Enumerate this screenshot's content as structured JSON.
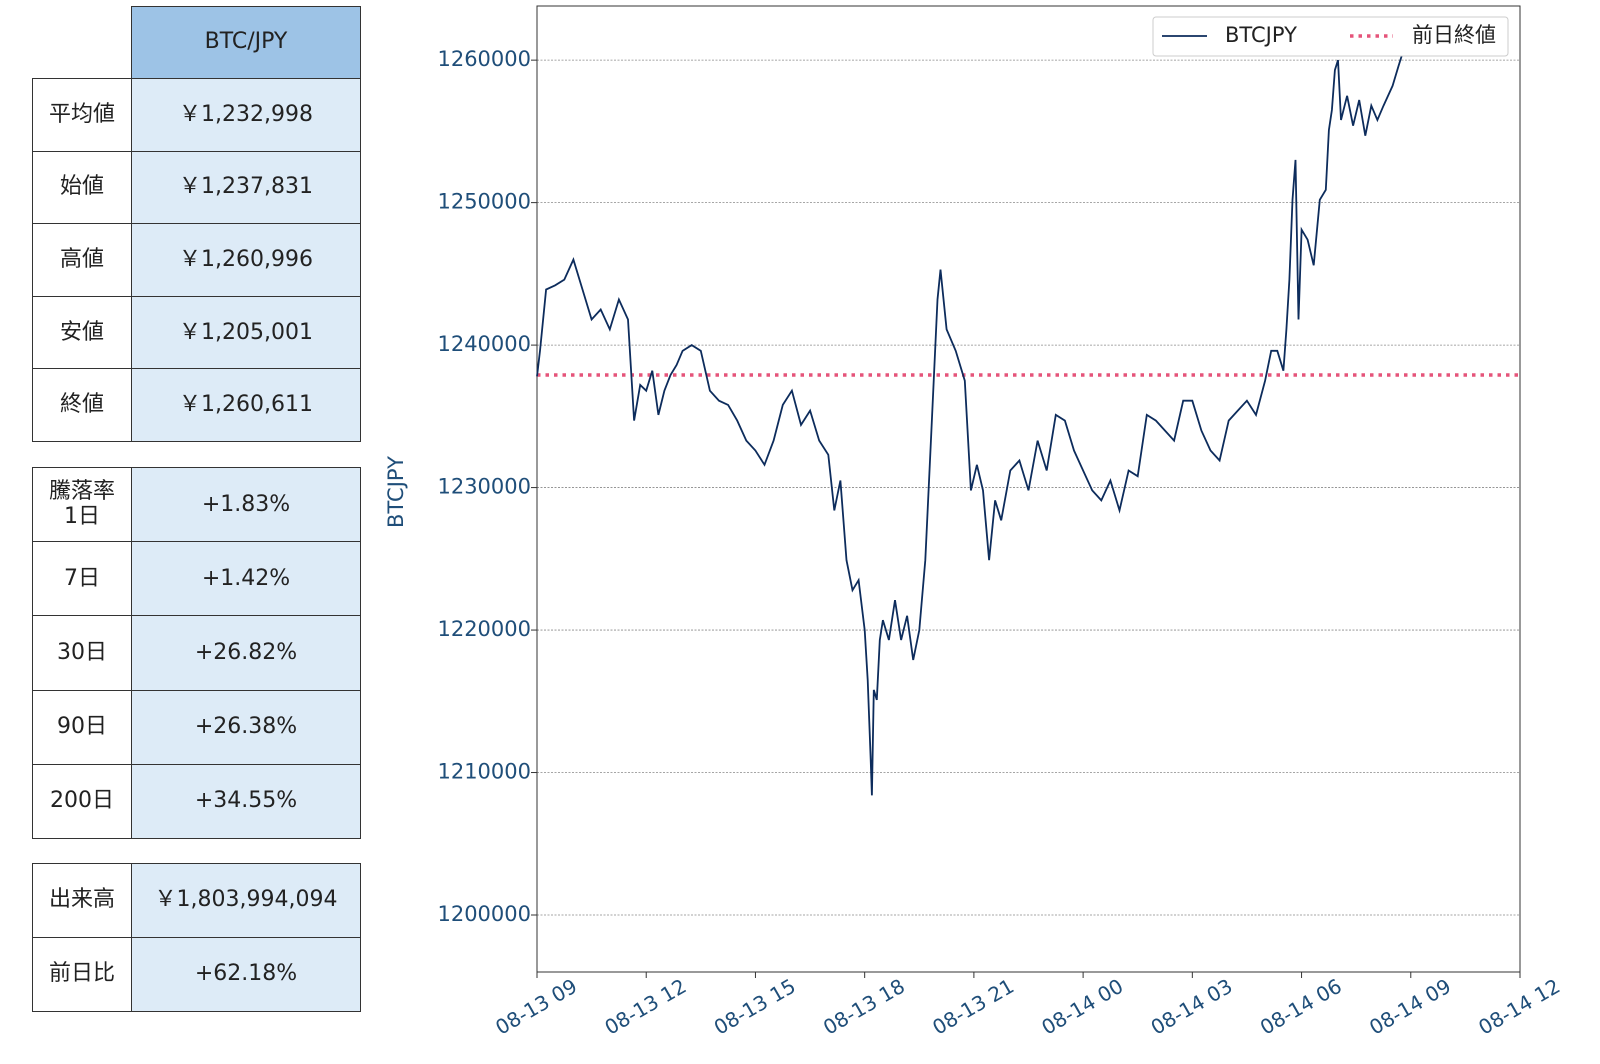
{
  "tables": [
    {
      "header": "BTC/JPY",
      "rows": [
        [
          "平均値",
          "￥1,232,998"
        ],
        [
          "始値",
          "￥1,237,831"
        ],
        [
          "高値",
          "￥1,260,996"
        ],
        [
          "安値",
          "￥1,205,001"
        ],
        [
          "終値",
          "￥1,260,611"
        ]
      ]
    },
    {
      "rows": [
        [
          "騰落率\n1日",
          "+1.83%"
        ],
        [
          "7日",
          "+1.42%"
        ],
        [
          "30日",
          "+26.82%"
        ],
        [
          "90日",
          "+26.38%"
        ],
        [
          "200日",
          "+34.55%"
        ]
      ]
    },
    {
      "rows": [
        [
          "出来高",
          "￥1,803,994,094"
        ],
        [
          "前日比",
          "+62.18%"
        ]
      ]
    }
  ],
  "chart_data": {
    "type": "line",
    "y_label": "BTCJPY",
    "x": [
      "08-13 09:00",
      "08-13 09:05",
      "08-13 09:15",
      "08-13 09:30",
      "08-13 09:45",
      "08-13 10:00",
      "08-13 10:15",
      "08-13 10:30",
      "08-13 10:45",
      "08-13 11:00",
      "08-13 11:15",
      "08-13 11:30",
      "08-13 11:40",
      "08-13 11:50",
      "08-13 12:00",
      "08-13 12:10",
      "08-13 12:20",
      "08-13 12:30",
      "08-13 12:40",
      "08-13 12:50",
      "08-13 13:00",
      "08-13 13:15",
      "08-13 13:30",
      "08-13 13:45",
      "08-13 14:00",
      "08-13 14:15",
      "08-13 14:30",
      "08-13 14:45",
      "08-13 15:00",
      "08-13 15:15",
      "08-13 15:30",
      "08-13 15:45",
      "08-13 16:00",
      "08-13 16:15",
      "08-13 16:30",
      "08-13 16:45",
      "08-13 17:00",
      "08-13 17:10",
      "08-13 17:20",
      "08-13 17:30",
      "08-13 17:40",
      "08-13 17:50",
      "08-13 18:00",
      "08-13 18:05",
      "08-13 18:10",
      "08-13 18:12",
      "08-13 18:15",
      "08-13 18:20",
      "08-13 18:25",
      "08-13 18:30",
      "08-13 18:40",
      "08-13 18:50",
      "08-13 19:00",
      "08-13 19:10",
      "08-13 19:20",
      "08-13 19:30",
      "08-13 19:40",
      "08-13 19:50",
      "08-13 20:00",
      "08-13 20:05",
      "08-13 20:15",
      "08-13 20:30",
      "08-13 20:45",
      "08-13 20:55",
      "08-13 21:05",
      "08-13 21:15",
      "08-13 21:25",
      "08-13 21:35",
      "08-13 21:45",
      "08-13 22:00",
      "08-13 22:15",
      "08-13 22:30",
      "08-13 22:45",
      "08-13 23:00",
      "08-13 23:15",
      "08-13 23:30",
      "08-13 23:45",
      "08-14 00:00",
      "08-14 00:15",
      "08-14 00:30",
      "08-14 00:45",
      "08-14 01:00",
      "08-14 01:15",
      "08-14 01:30",
      "08-14 01:45",
      "08-14 02:00",
      "08-14 02:15",
      "08-14 02:30",
      "08-14 02:45",
      "08-14 03:00",
      "08-14 03:15",
      "08-14 03:30",
      "08-14 03:45",
      "08-14 04:00",
      "08-14 04:15",
      "08-14 04:30",
      "08-14 04:45",
      "08-14 05:00",
      "08-14 05:10",
      "08-14 05:20",
      "08-14 05:30",
      "08-14 05:35",
      "08-14 05:40",
      "08-14 05:45",
      "08-14 05:50",
      "08-14 05:55",
      "08-14 06:00",
      "08-14 06:10",
      "08-14 06:20",
      "08-14 06:30",
      "08-14 06:40",
      "08-14 06:45",
      "08-14 06:50",
      "08-14 06:55",
      "08-14 07:00",
      "08-14 07:05",
      "08-14 07:15",
      "08-14 07:25",
      "08-14 07:35",
      "08-14 07:45",
      "08-14 07:55",
      "08-14 08:05",
      "08-14 08:15",
      "08-14 08:30",
      "08-14 08:40",
      "08-14 08:45"
    ],
    "series": [
      {
        "name": "BTCJPY",
        "color": "#0d2c5c",
        "values": [
          1237800,
          1239600,
          1243900,
          1244200,
          1244600,
          1246000,
          1243900,
          1241800,
          1242500,
          1241100,
          1243200,
          1241800,
          1234700,
          1237200,
          1236800,
          1238200,
          1235100,
          1236800,
          1237900,
          1238600,
          1239600,
          1240000,
          1239600,
          1236800,
          1236100,
          1235800,
          1234700,
          1233300,
          1232600,
          1231600,
          1233300,
          1235800,
          1236800,
          1234400,
          1235400,
          1233300,
          1232300,
          1228400,
          1230500,
          1224900,
          1222800,
          1223500,
          1220000,
          1216500,
          1210900,
          1208400,
          1215800,
          1215100,
          1219300,
          1220700,
          1219300,
          1222100,
          1219300,
          1221000,
          1217900,
          1220000,
          1224900,
          1234000,
          1243200,
          1245300,
          1241100,
          1239600,
          1237500,
          1229800,
          1231600,
          1229800,
          1224900,
          1229100,
          1227700,
          1231200,
          1231900,
          1229800,
          1233300,
          1231200,
          1235100,
          1234700,
          1232600,
          1231200,
          1229800,
          1229100,
          1230500,
          1228400,
          1231200,
          1230800,
          1235100,
          1234700,
          1234000,
          1233300,
          1236100,
          1236100,
          1234000,
          1232600,
          1231900,
          1234700,
          1235400,
          1236100,
          1235100,
          1237500,
          1239600,
          1239600,
          1238200,
          1241100,
          1244600,
          1250200,
          1253000,
          1241800,
          1248100,
          1247400,
          1245600,
          1250200,
          1250900,
          1255100,
          1256500,
          1259300,
          1260000,
          1255800,
          1257500,
          1255400,
          1257200,
          1254700,
          1256800,
          1255800,
          1256800,
          1258200,
          1259600,
          1260300
        ]
      }
    ],
    "reference_line": {
      "name": "前日終値",
      "value": 1237900,
      "color": "#e5547a"
    },
    "xlim": [
      "08-13 09",
      "08-14 12"
    ],
    "xticks": [
      "08-13 09",
      "08-13 12",
      "08-13 15",
      "08-13 18",
      "08-13 21",
      "08-14 00",
      "08-14 03",
      "08-14 06",
      "08-14 09",
      "08-14 12"
    ],
    "ylim": [
      1196000,
      1263800
    ],
    "yticks": [
      1200000,
      1210000,
      1220000,
      1230000,
      1240000,
      1250000,
      1260000
    ],
    "grid": true,
    "legend": "upper right"
  }
}
